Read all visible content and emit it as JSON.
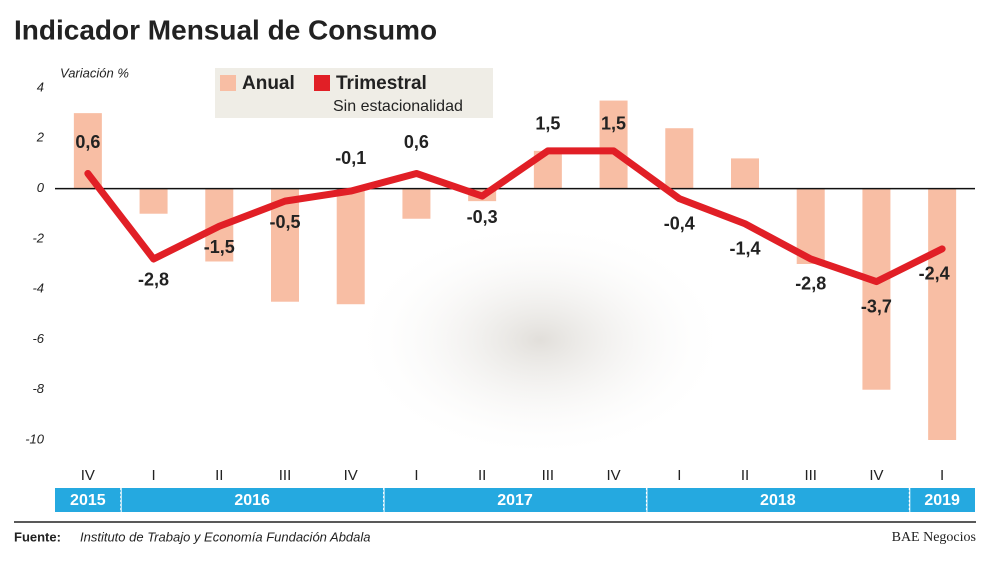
{
  "chart_data": {
    "type": "bar_line",
    "title": "Indicador Mensual de Consumo",
    "y_label": "Variación %",
    "legend_note": "Sin estacionalidad",
    "groups": [
      {
        "year": "2015",
        "quarters": [
          "IV"
        ]
      },
      {
        "year": "2016",
        "quarters": [
          "I",
          "II",
          "III",
          "IV"
        ]
      },
      {
        "year": "2017",
        "quarters": [
          "I",
          "II",
          "III",
          "IV"
        ]
      },
      {
        "year": "2018",
        "quarters": [
          "I",
          "II",
          "III",
          "IV"
        ]
      },
      {
        "year": "2019",
        "quarters": [
          "I"
        ]
      }
    ],
    "series": [
      {
        "name": "Anual",
        "color": "#f8bea4",
        "values": [
          3.0,
          -1.0,
          -2.9,
          -4.5,
          -4.6,
          -1.2,
          -0.5,
          1.5,
          3.5,
          2.4,
          1.2,
          -3.0,
          -8.0,
          -10.0
        ]
      },
      {
        "name": "Trimestral",
        "color": "#e11f26",
        "values": [
          0.6,
          -2.8,
          -1.5,
          -0.5,
          -0.1,
          0.6,
          -0.3,
          1.5,
          1.5,
          -0.4,
          -1.4,
          -2.8,
          -3.7,
          -2.4
        ],
        "value_labels": [
          "0,6",
          "-2,8",
          "-1,5",
          "-0,5",
          "-0,1",
          "0,6",
          "-0,3",
          "1,5",
          "1,5",
          "-0,4",
          "-1,4",
          "-2,8",
          "-3,7",
          "-2,4"
        ]
      }
    ],
    "ylim": [
      -10,
      4
    ],
    "yticks": [
      -10,
      -8,
      -6,
      -4,
      -2,
      0,
      2,
      4
    ],
    "source_label": "Fuente:",
    "source": "Instituto de Trabajo y Economía Fundación Abdala",
    "credit": "BAE Negocios"
  }
}
